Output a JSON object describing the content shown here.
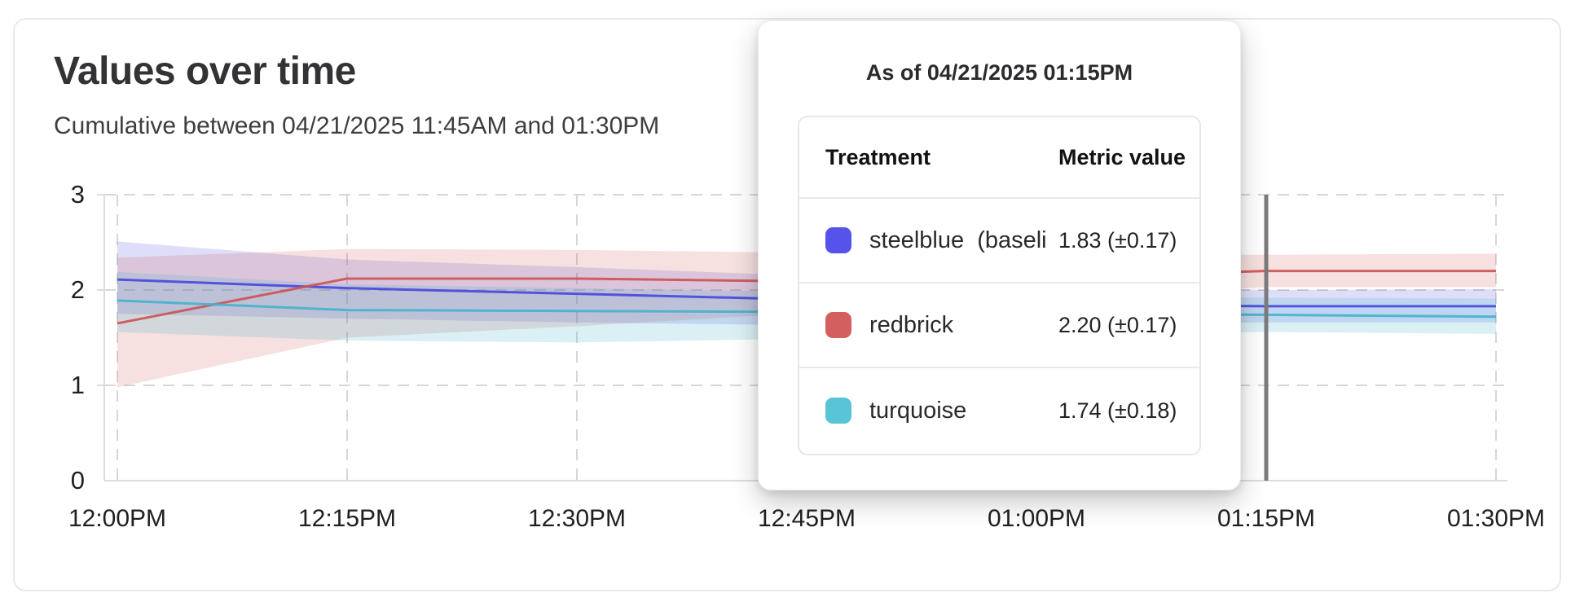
{
  "header": {
    "title": "Values over time",
    "subtitle": "Cumulative between 04/21/2025 11:45AM and 01:30PM"
  },
  "tooltip": {
    "title": "As of 04/21/2025 01:15PM",
    "columns": [
      "Treatment",
      "Metric value"
    ],
    "rows": [
      {
        "label": "steelblue  (baseli",
        "value": "1.83 (±0.17)",
        "swatch_color": "#5653ea"
      },
      {
        "label": "redbrick",
        "value": "2.20 (±0.17)",
        "swatch_color": "#d45f5f"
      },
      {
        "label": "turquoise",
        "value": "1.74 (±0.18)",
        "swatch_color": "#59c4d6"
      }
    ]
  },
  "chart_data": {
    "type": "line",
    "title": "Values over time",
    "subtitle": "Cumulative between 04/21/2025 11:45AM and 01:30PM",
    "x_tick_labels": [
      "12:00PM",
      "12:15PM",
      "12:30PM",
      "12:45PM",
      "01:00PM",
      "01:15PM",
      "01:30PM"
    ],
    "y_tick_labels": [
      "3",
      "2",
      "1",
      "0"
    ],
    "ylim": [
      0,
      3
    ],
    "grid": "dashed",
    "hover_tick_index": 5,
    "hover_label": "01:15PM",
    "colors": {
      "grid": "#d7d7d7",
      "axis": "#dcdcdc",
      "hover_line": "#7b7b7b"
    },
    "series": [
      {
        "name": "steelblue  (baseli",
        "color": "#4b49dd",
        "band_opacity": 0.18,
        "values": [
          2.11,
          2.02,
          1.96,
          1.9,
          1.85,
          1.83,
          1.83
        ],
        "upper": [
          2.51,
          2.32,
          2.24,
          2.15,
          2.05,
          2.0,
          2.01
        ],
        "lower": [
          1.75,
          1.7,
          1.66,
          1.63,
          1.64,
          1.66,
          1.66
        ],
        "value_at_hover": "1.83 (±0.17)"
      },
      {
        "name": "redbrick",
        "color": "#cc5555",
        "band_opacity": 0.18,
        "values": [
          1.65,
          2.12,
          2.12,
          2.09,
          2.13,
          2.2,
          2.2
        ],
        "upper": [
          2.34,
          2.43,
          2.42,
          2.39,
          2.38,
          2.37,
          2.38
        ],
        "lower": [
          0.98,
          1.5,
          1.62,
          1.76,
          1.92,
          2.03,
          2.03
        ],
        "value_at_hover": "2.20 (±0.17)"
      },
      {
        "name": "turquoise",
        "color": "#45b3cb",
        "band_opacity": 0.2,
        "values": [
          1.89,
          1.79,
          1.78,
          1.77,
          1.75,
          1.74,
          1.72
        ],
        "upper": [
          2.19,
          2.06,
          2.02,
          1.98,
          1.94,
          1.92,
          1.91
        ],
        "lower": [
          1.56,
          1.47,
          1.45,
          1.49,
          1.53,
          1.56,
          1.54
        ],
        "value_at_hover": "1.74 (±0.18)"
      }
    ]
  }
}
